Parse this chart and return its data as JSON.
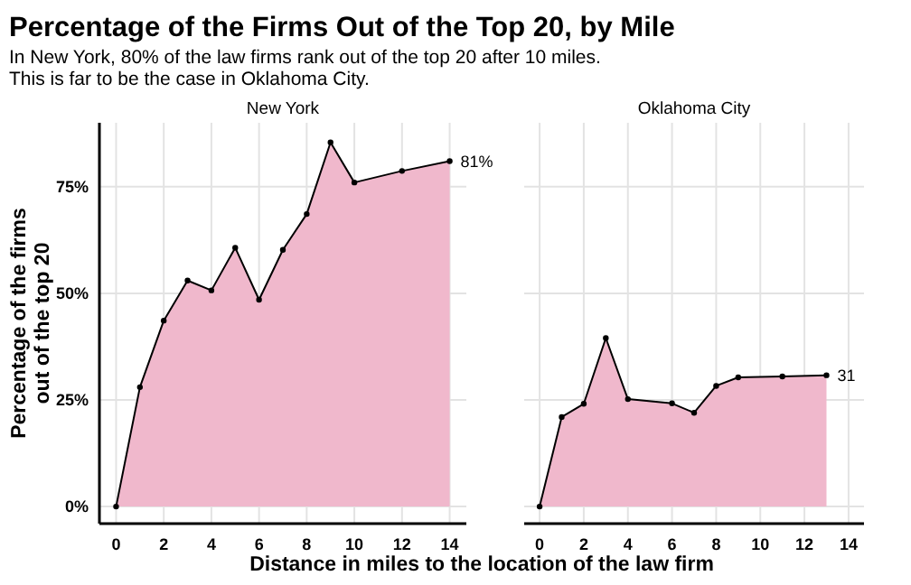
{
  "chart_data": [
    {
      "type": "area",
      "title": "Percentage of the Firms Out of the Top 20, by Mile",
      "subtitle": "In New York, 80% of the law firms rank out of the top 20 after 10 miles.\nThis is far to be the case in Oklahoma City.",
      "xlabel": "Distance in miles to the location of the law firm",
      "ylabel": "Percentage of the firms\nout of the top 20",
      "x": [
        0,
        1,
        2,
        3,
        4,
        5,
        6,
        7,
        8,
        9,
        10,
        12,
        14
      ],
      "series": [
        {
          "name": "New York",
          "color": "#f0b8cc",
          "values": [
            0,
            28,
            43.6,
            53,
            50.7,
            60.7,
            48.5,
            60.2,
            68.6,
            85.4,
            76,
            78.7,
            81
          ],
          "value_labels": [
            null,
            null,
            null,
            null,
            null,
            null,
            null,
            null,
            null,
            null,
            null,
            null,
            "81%"
          ]
        }
      ],
      "xlim": [
        -0.7,
        14.7
      ],
      "xticks": [
        0,
        2,
        4,
        6,
        8,
        10,
        12,
        14
      ],
      "ylim": [
        -4,
        90
      ],
      "yticks": [
        {
          "value": 0,
          "label": "0%"
        },
        {
          "value": 25,
          "label": "25%"
        },
        {
          "value": 50,
          "label": "50%"
        },
        {
          "value": 75,
          "label": "75%"
        }
      ],
      "grid": true,
      "marker": "circle"
    },
    {
      "type": "area",
      "x": [
        0,
        1,
        2,
        3,
        4,
        6,
        7,
        8,
        9,
        11,
        13
      ],
      "series": [
        {
          "name": "Oklahoma City",
          "color": "#f0b8cc",
          "values": [
            0,
            21,
            24.1,
            39.5,
            25.2,
            24.2,
            22,
            28.3,
            30.3,
            30.5,
            30.8
          ],
          "value_labels": [
            null,
            null,
            null,
            null,
            null,
            null,
            null,
            null,
            null,
            null,
            "31"
          ]
        }
      ],
      "xlim": [
        -0.7,
        14.7
      ],
      "xticks": [
        0,
        2,
        4,
        6,
        8,
        10,
        12,
        14
      ],
      "ylim": [
        -4,
        90
      ],
      "yticks": [
        0,
        25,
        50,
        75
      ],
      "grid": true,
      "marker": "circle",
      "tick_labels": "x"
    }
  ]
}
